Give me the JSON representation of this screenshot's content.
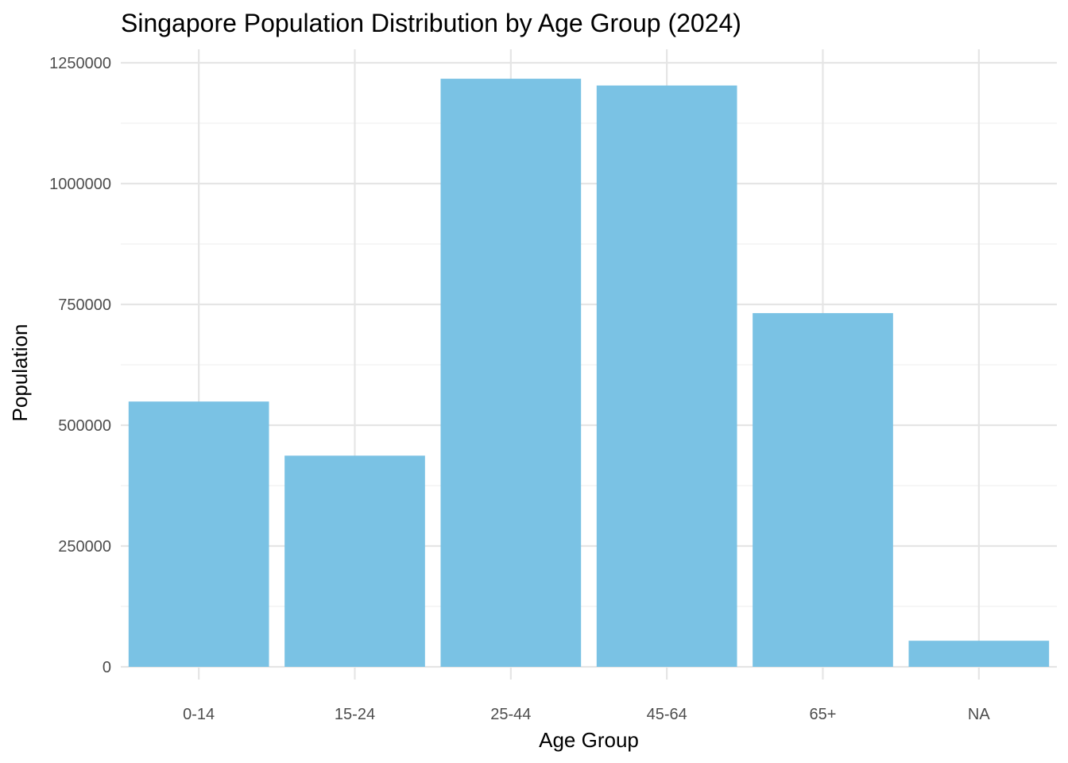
{
  "chart_data": {
    "type": "bar",
    "title": "Singapore Population Distribution by Age Group (2024)",
    "xlabel": "Age Group",
    "ylabel": "Population",
    "categories": [
      "0-14",
      "15-24",
      "25-44",
      "45-64",
      "65+",
      "NA"
    ],
    "values": [
      549000,
      437000,
      1217000,
      1203000,
      732000,
      54000
    ],
    "ylim": [
      0,
      1250000
    ],
    "yticks": [
      0,
      250000,
      500000,
      750000,
      1000000,
      1250000
    ],
    "ytick_labels": [
      "0",
      "250000",
      "500000",
      "750000",
      "1000000",
      "1250000"
    ],
    "grid": true,
    "legend": "none",
    "bar_color": "#7ac2e4"
  }
}
